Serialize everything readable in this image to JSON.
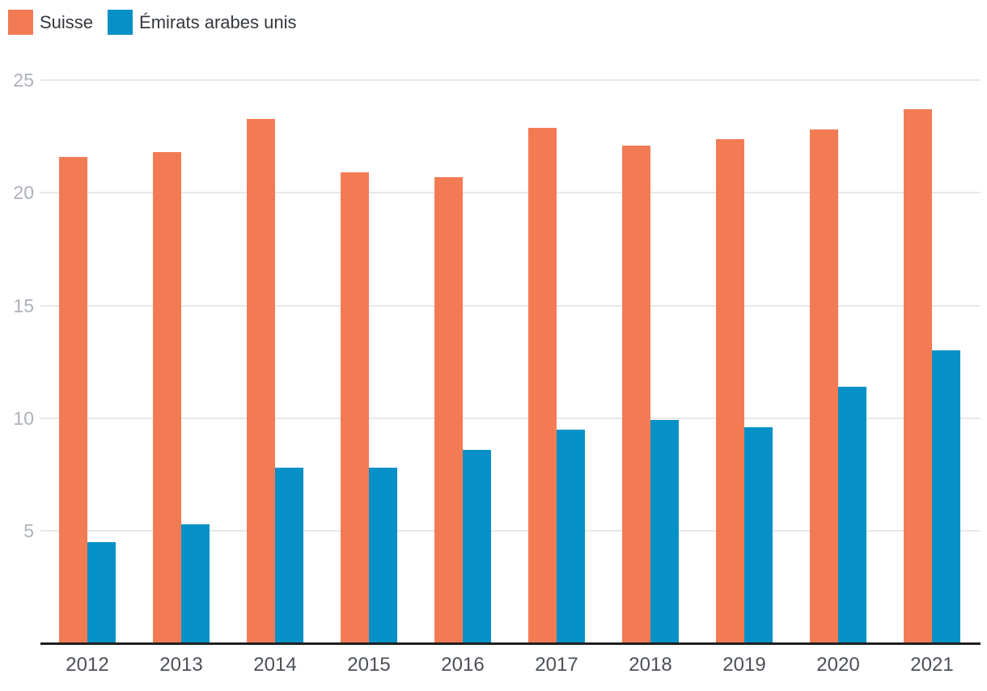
{
  "legend": {
    "items": [
      {
        "label": "Suisse",
        "color": "#f37b54"
      },
      {
        "label": "Émirats arabes unis",
        "color": "#0591c8"
      }
    ]
  },
  "chart_data": {
    "type": "bar",
    "title": "",
    "xlabel": "",
    "ylabel": "",
    "categories": [
      "2012",
      "2013",
      "2014",
      "2015",
      "2016",
      "2017",
      "2018",
      "2019",
      "2020",
      "2021"
    ],
    "series": [
      {
        "name": "Suisse",
        "color": "#f37b54",
        "values": [
          21.6,
          21.8,
          23.3,
          20.9,
          20.7,
          22.9,
          22.1,
          22.4,
          22.8,
          23.7
        ]
      },
      {
        "name": "Émirats arabes unis",
        "color": "#0591c8",
        "values": [
          4.5,
          5.3,
          7.8,
          7.8,
          8.6,
          9.5,
          9.9,
          9.6,
          11.4,
          13.0
        ]
      }
    ],
    "ylim": [
      0,
      25
    ],
    "yticks": [
      5,
      10,
      15,
      20,
      25
    ],
    "grid": true,
    "legend_position": "top-left",
    "colors": {
      "gridline": "#e8e8e8",
      "axis_line": "#1f1f1f",
      "ytick_label": "#adb2b8",
      "xtick_label": "#4b5056",
      "legend_text": "#33383d"
    }
  }
}
